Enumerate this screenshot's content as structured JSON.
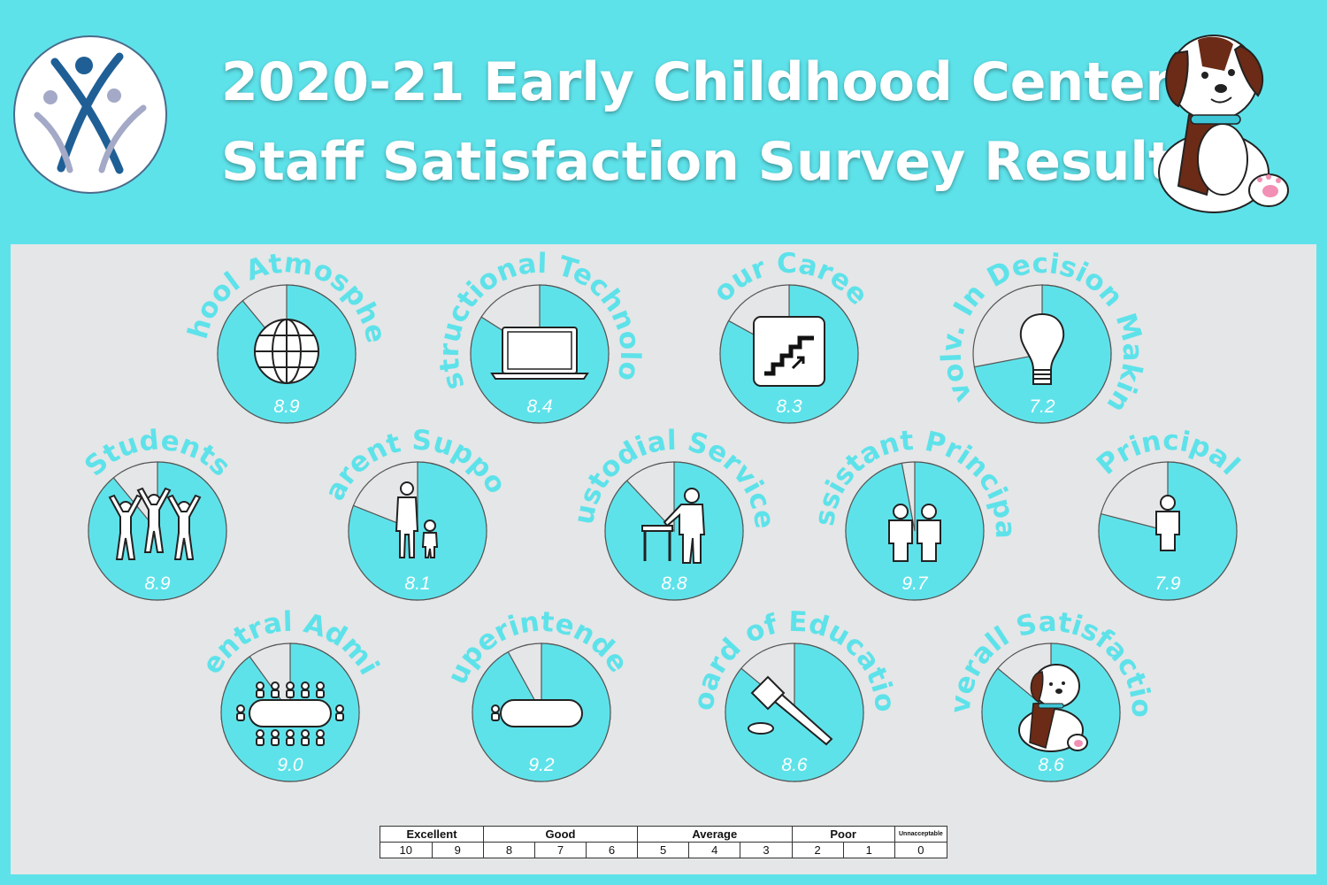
{
  "header": {
    "title_line1": "2020-21 Early Childhood Center",
    "title_line2": "Staff Satisfaction Survey Results"
  },
  "colors": {
    "background": "#5ee2ea",
    "panel": "#e5e6e7",
    "fill": "#5ee2ea",
    "empty": "#e5e6e7",
    "label": "#5ee2ea",
    "value_text": "#ffffff"
  },
  "chart_data": {
    "type": "pie",
    "max_value": 10,
    "items": [
      {
        "label": "School Atmosphere",
        "value": 8.9,
        "icon": "globe-icon"
      },
      {
        "label": "Instructional Technology",
        "value": 8.4,
        "icon": "laptop-icon"
      },
      {
        "label": "Your Career",
        "value": 8.3,
        "icon": "stairs-icon"
      },
      {
        "label": "Involv. In Decision Making",
        "value": 7.2,
        "icon": "lightbulb-icon"
      },
      {
        "label": "Students",
        "value": 8.9,
        "icon": "students-icon"
      },
      {
        "label": "Parent Support",
        "value": 8.1,
        "icon": "parent-child-icon"
      },
      {
        "label": "Custodial Services",
        "value": 8.8,
        "icon": "custodian-icon"
      },
      {
        "label": "Assistant Principal",
        "value": 9.7,
        "icon": "two-people-icon"
      },
      {
        "label": "Principal",
        "value": 7.9,
        "icon": "person-icon"
      },
      {
        "label": "Central Admin",
        "value": 9.0,
        "icon": "conference-table-icon"
      },
      {
        "label": "Superintendent",
        "value": 9.2,
        "icon": "meeting-table-icon"
      },
      {
        "label": "Board of Education",
        "value": 8.6,
        "icon": "gavel-icon"
      },
      {
        "label": "Overall Satisfaction",
        "value": 8.6,
        "icon": "puppy-icon"
      }
    ]
  },
  "scale": {
    "levels": [
      {
        "label": "Excellent",
        "span": 2
      },
      {
        "label": "Good",
        "span": 3
      },
      {
        "label": "Average",
        "span": 3
      },
      {
        "label": "Poor",
        "span": 2
      },
      {
        "label": "Unnacceptable",
        "span": 1
      }
    ],
    "numbers": [
      "10",
      "9",
      "8",
      "7",
      "6",
      "5",
      "4",
      "3",
      "2",
      "1",
      "0"
    ]
  }
}
